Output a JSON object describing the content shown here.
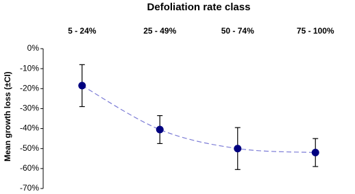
{
  "chart_data": {
    "type": "line",
    "title": "Defoliation rate class",
    "y_label": "Mean growth loss (±CI)",
    "categories": [
      "5 - 24%",
      "25 - 49%",
      "50 - 74%",
      "75 - 100%"
    ],
    "values": [
      -18.5,
      -40.5,
      -50,
      -52
    ],
    "errors": [
      10.5,
      7,
      10.5,
      7
    ],
    "color": "#000080",
    "line_color": "#7b7bd6",
    "line_style": "dashed",
    "smooth": true,
    "ylim": [
      -70,
      0
    ],
    "yticks": [
      {
        "value": 0,
        "label": "0%"
      },
      {
        "value": -10,
        "label": "-10%"
      },
      {
        "value": -20,
        "label": "-20%"
      },
      {
        "value": -30,
        "label": "-30%"
      },
      {
        "value": -40,
        "label": "-40%"
      },
      {
        "value": -50,
        "label": "-50%"
      },
      {
        "value": -60,
        "label": "-60%"
      },
      {
        "value": -70,
        "label": "-70%"
      }
    ],
    "grid": false
  }
}
